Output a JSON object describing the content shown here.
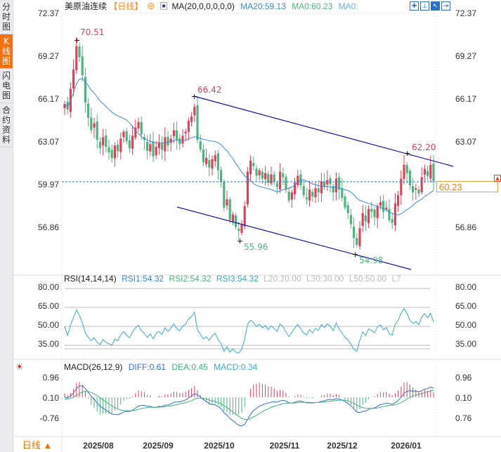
{
  "sidebar": {
    "tabs": [
      {
        "label": "分时图",
        "active": false
      },
      {
        "label": "K线图",
        "active": true
      },
      {
        "label": "闪电图",
        "active": false
      },
      {
        "label": "合约资料",
        "active": false
      }
    ]
  },
  "header": {
    "symbol": "美原油连续",
    "period_tag": "【日线】",
    "ma_label": "MA(20,0,0,0,0,0)",
    "ma20": "MA20:59.13",
    "ma0a": "MA0:60.23",
    "ma0b": "MA0:"
  },
  "toolbar": {
    "icons": [
      "crosshair-icon",
      "fit-range-icon",
      "cursor-mode-icon",
      "exit-icon"
    ]
  },
  "colors": {
    "up": "#e0405a",
    "down": "#4fb27f",
    "ma": "#3c8ad8",
    "trend": "#1010b0",
    "rsi": "#3aa8c8",
    "diff": "#3570c8",
    "dea": "#40b080"
  },
  "price_axis": [
    "72.37",
    "69.27",
    "66.17",
    "63.07",
    "59.97",
    "56.86"
  ],
  "current_price": "60.23",
  "annotations": [
    {
      "text": "70.51",
      "kind": "high"
    },
    {
      "text": "66.42",
      "kind": "high"
    },
    {
      "text": "55.96",
      "kind": "low"
    },
    {
      "text": "54.98",
      "kind": "low"
    },
    {
      "text": "62.20",
      "kind": "high"
    }
  ],
  "chart_data": {
    "type": "candlestick",
    "closes": [
      65.8,
      65.4,
      66.9,
      68.3,
      70.0,
      69.2,
      67.9,
      65.9,
      64.8,
      63.9,
      64.4,
      63.2,
      62.6,
      63.4,
      62.7,
      62.3,
      61.9,
      62.8,
      62.4,
      63.3,
      63.8,
      63.1,
      62.6,
      63.5,
      64.1,
      64.5,
      63.6,
      63.2,
      62.4,
      62.9,
      62.0,
      62.7,
      63.0,
      62.5,
      63.4,
      62.8,
      63.3,
      63.9,
      63.2,
      62.9,
      63.5,
      63.8,
      64.6,
      64.9,
      65.6,
      63.2,
      62.5,
      61.6,
      61.9,
      61.2,
      61.8,
      62.1,
      61.0,
      60.2,
      58.3,
      58.9,
      57.4,
      57.8,
      56.9,
      56.6,
      57.1,
      58.4,
      60.9,
      61.7,
      61.3,
      60.6,
      61.0,
      60.4,
      60.8,
      60.1,
      60.7,
      60.2,
      59.8,
      60.9,
      60.5,
      59.6,
      58.8,
      59.4,
      60.1,
      60.6,
      59.9,
      59.2,
      58.9,
      59.6,
      59.1,
      59.7,
      59.4,
      60.2,
      59.8,
      60.3,
      60.0,
      59.4,
      60.4,
      59.6,
      59.0,
      58.3,
      57.9,
      57.1,
      56.1,
      55.6,
      56.8,
      57.9,
      57.3,
      58.2,
      58.0,
      57.6,
      58.4,
      58.7,
      58.0,
      58.3,
      57.4,
      57.2,
      58.6,
      59.2,
      60.4,
      61.4,
      60.8,
      59.9,
      59.4,
      59.7,
      59.3,
      60.5,
      61.1,
      60.6,
      61.4,
      60.23
    ],
    "ylim": [
      54.5,
      72.37
    ],
    "x_ticks": [
      "2025/08",
      "2025/09",
      "2025/10",
      "2025/11",
      "2025/12",
      "2026/01"
    ]
  },
  "rsi": {
    "label": "RSI(14,14,14)",
    "rsi1": "RSI1:54.32",
    "rsi2": "RSI2:54.32",
    "rsi3": "RSI3:54.32",
    "l20": "L20:20.00",
    "l30": "L30:30.00",
    "l50": "L50:50.00",
    "l7": "L7",
    "axis": [
      "80.00",
      "65.00",
      "50.00",
      "35.00"
    ]
  },
  "macd": {
    "label": "MACD(26,12,9)",
    "diff": "DIFF:0.61",
    "dea": "DEA:0.45",
    "macd": "MACD:0.34",
    "axis": [
      "0.96",
      "0.10",
      "-0.76"
    ],
    "axis_right_bottom": "0.76"
  },
  "period_button": "日线 ▲"
}
